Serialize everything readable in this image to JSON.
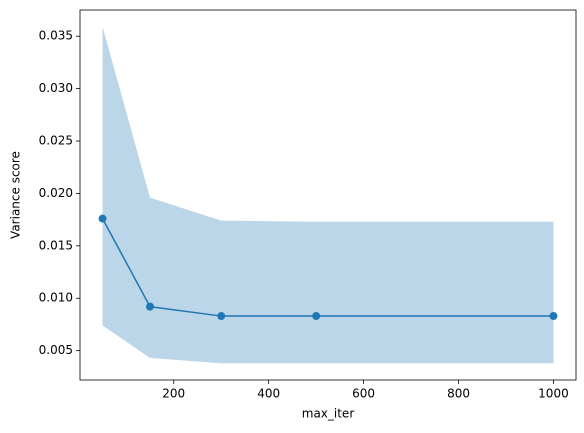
{
  "chart_data": {
    "type": "line",
    "x": [
      50,
      150,
      300,
      500,
      1000
    ],
    "series": [
      {
        "color": "#1f77b4",
        "band_opacity": 0.3,
        "values": [
          0.0176,
          0.0092,
          0.0083,
          0.0083,
          0.0083
        ],
        "upper": [
          0.0359,
          0.0196,
          0.0174,
          0.0173,
          0.0173
        ],
        "lower": [
          0.0074,
          0.0043,
          0.0038,
          0.0038,
          0.0038
        ]
      }
    ],
    "xlabel": "max_iter",
    "ylabel": "Variance score",
    "xlim": [
      2.5,
      1047.5
    ],
    "xticks": [
      200,
      400,
      600,
      800,
      1000
    ],
    "ylim": [
      0.0022,
      0.0375
    ],
    "yticks": [
      0.005,
      {
        "value": 0.01,
        "label": "0.010"
      },
      0.015,
      {
        "value": 0.02,
        "label": "0.020"
      },
      0.025,
      {
        "value": 0.03,
        "label": "0.030"
      },
      0.035
    ]
  }
}
